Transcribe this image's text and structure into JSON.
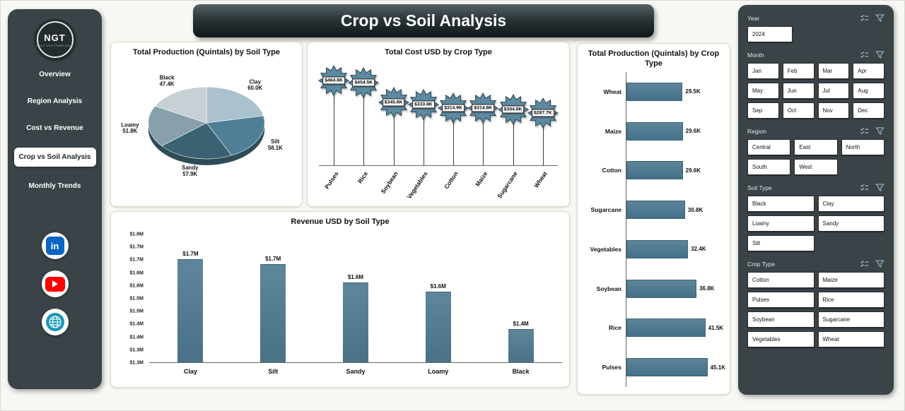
{
  "page": {
    "title": "Crop vs Soil Analysis"
  },
  "sidebar": {
    "logo_text": "NGT",
    "logo_subtext": "NEXT GEN TEMPLATES",
    "items": [
      {
        "label": "Overview",
        "active": false
      },
      {
        "label": "Region Analysis",
        "active": false
      },
      {
        "label": "Cost vs Revenue",
        "active": false
      },
      {
        "label": "Crop vs Soil Analysis",
        "active": true
      },
      {
        "label": "Monthly Trends",
        "active": false
      }
    ],
    "social_icons": [
      "linkedin",
      "youtube",
      "globe"
    ]
  },
  "chart_data": [
    {
      "type": "pie",
      "title": "Total Production (Quintals) by Soil Type",
      "categories": [
        "Clay",
        "Silt",
        "Sandy",
        "Loamy",
        "Black"
      ],
      "values": [
        60.0,
        58.1,
        57.9,
        51.8,
        47.4
      ],
      "labels": [
        "60.0K",
        "58.1K",
        "57.9K",
        "51.8K",
        "47.4K"
      ],
      "colors": [
        "#a9c2cd",
        "#4f7f97",
        "#3a6272",
        "#87a0ac",
        "#c7d0d4"
      ]
    },
    {
      "type": "lollipop-star",
      "title": "Total Cost USD by Crop Type",
      "categories": [
        "Pulses",
        "Rice",
        "Soybean",
        "Vegetables",
        "Cotton",
        "Maize",
        "Sugarcane",
        "Wheat"
      ],
      "values": [
        464.6,
        454.5,
        345.6,
        333.8,
        314.9,
        314.8,
        304.6,
        287.7
      ],
      "labels": [
        "$464.6K",
        "$454.5K",
        "$345.6K",
        "$333.8K",
        "$314.9K",
        "$314.8K",
        "$304.6K",
        "$287.7K"
      ],
      "ylim": [
        0,
        520
      ],
      "marker_color": "#5d8aa0"
    },
    {
      "type": "bar",
      "title": "Revenue USD by Soil Type",
      "categories": [
        "Clay",
        "Silt",
        "Sandy",
        "Loamy",
        "Black"
      ],
      "values": [
        1.74,
        1.72,
        1.64,
        1.6,
        1.44
      ],
      "labels": [
        "$1.7M",
        "$1.7M",
        "$1.6M",
        "$1.6M",
        "$1.4M"
      ],
      "yticks": [
        "$1.8M",
        "$1.7M",
        "$1.7M",
        "$1.6M",
        "$1.6M",
        "$1.5M",
        "$1.5M",
        "$1.4M",
        "$1.4M",
        "$1.3M",
        "$1.3M"
      ],
      "ylim": [
        1.3,
        1.85
      ],
      "bar_color": "#527d93"
    },
    {
      "type": "bar-horizontal",
      "title": "Total Production (Quintals) by Crop Type",
      "categories": [
        "Wheat",
        "Maize",
        "Cotton",
        "Sugarcane",
        "Vegetables",
        "Soybean",
        "Rice",
        "Pulses"
      ],
      "values": [
        29.5,
        29.6,
        29.6,
        30.8,
        32.4,
        36.8,
        41.5,
        45.1
      ],
      "labels": [
        "29.5K",
        "29.6K",
        "29.6K",
        "30.8K",
        "32.4K",
        "36.8K",
        "41.5K",
        "45.1K"
      ],
      "xlim": [
        0,
        52
      ],
      "bar_color": "#527d93"
    }
  ],
  "slicers": [
    {
      "label": "Year",
      "cols": 1,
      "options": [
        "2024"
      ]
    },
    {
      "label": "Month",
      "cols": 4,
      "options": [
        "Jan",
        "Feb",
        "Mar",
        "Apr",
        "May",
        "Jun",
        "Jul",
        "Aug",
        "Sep",
        "Oct",
        "Nov",
        "Dec"
      ]
    },
    {
      "label": "Region",
      "cols": 3,
      "options": [
        "Central",
        "East",
        "North",
        "South",
        "West"
      ]
    },
    {
      "label": "Soil Type",
      "cols": 2,
      "options": [
        "Black",
        "Clay",
        "Loamy",
        "Sandy",
        "Silt"
      ]
    },
    {
      "label": "Crop Type",
      "cols": 2,
      "options": [
        "Cotton",
        "Maize",
        "Pulses",
        "Rice",
        "Soybean",
        "Sugarcane",
        "Vegetables",
        "Wheat"
      ]
    }
  ]
}
